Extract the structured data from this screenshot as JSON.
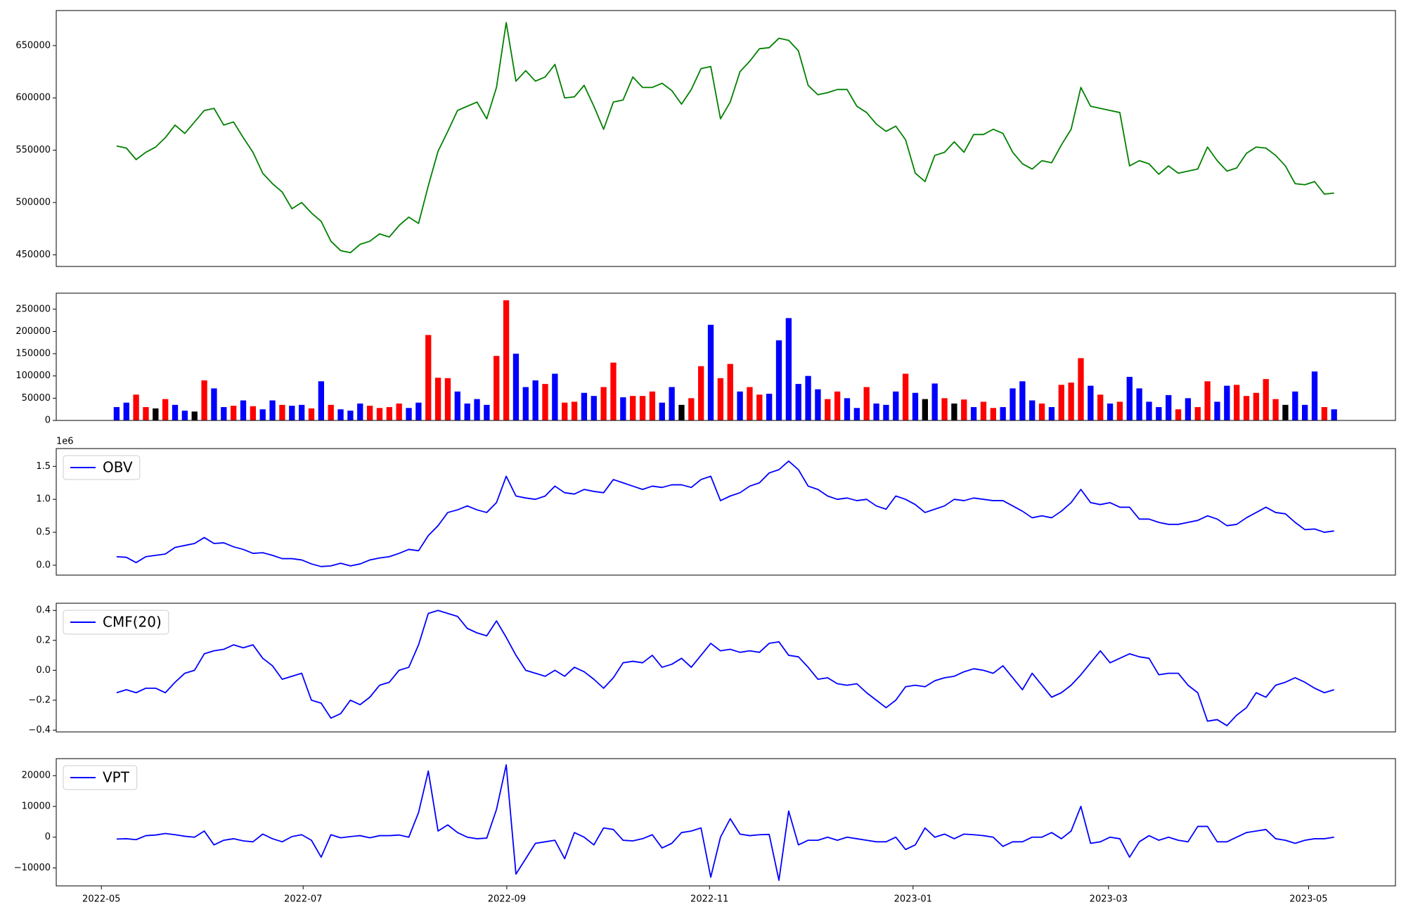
{
  "chart_data": [
    {
      "type": "line",
      "color": "green",
      "xlim": [
        -6.2,
        131.3
      ],
      "ylim": [
        438840,
        683500
      ],
      "yticks": [
        450000,
        500000,
        550000,
        600000,
        650000
      ],
      "values": [
        554000,
        552000,
        541000,
        548000,
        553000,
        562000,
        574000,
        566000,
        577000,
        588000,
        590000,
        574000,
        577000,
        562000,
        548000,
        528000,
        518000,
        510000,
        494000,
        500000,
        490000,
        482000,
        463000,
        454000,
        452000,
        460000,
        463000,
        470000,
        467000,
        478000,
        486000,
        480000,
        516000,
        549000,
        568000,
        588000,
        592000,
        596000,
        580000,
        610000,
        672000,
        616000,
        626000,
        616000,
        620000,
        632000,
        600000,
        601000,
        612000,
        592000,
        570000,
        596000,
        598000,
        620000,
        610000,
        610000,
        614000,
        607000,
        594000,
        608000,
        628000,
        630000,
        580000,
        596000,
        625000,
        635000,
        647000,
        648000,
        657000,
        655000,
        645000,
        612000,
        603000,
        605000,
        608000,
        608000,
        592000,
        586000,
        575000,
        568000,
        573000,
        560000,
        528000,
        520000,
        545000,
        548000,
        558000,
        548000,
        565000,
        565000,
        570000,
        566000,
        548000,
        537000,
        532000,
        540000,
        538000,
        555000,
        570000,
        610000,
        592000,
        590000,
        588000,
        586000,
        535000,
        540000,
        537000,
        527000,
        535000,
        528000,
        530000,
        532000,
        553000,
        540000,
        530000,
        533000,
        547000,
        553000,
        552000,
        545000,
        535000,
        518000,
        517000,
        520000,
        508000,
        509000
      ]
    },
    {
      "type": "bar",
      "xlim": [
        -6.2,
        131.3
      ],
      "ylim": [
        0,
        286000
      ],
      "yticks": [
        0,
        50000,
        100000,
        150000,
        200000,
        250000
      ],
      "values": [
        30000,
        40000,
        58000,
        30000,
        27000,
        48000,
        35000,
        22000,
        20000,
        90000,
        72000,
        30000,
        33000,
        45000,
        32000,
        25000,
        45000,
        35000,
        33000,
        35000,
        27000,
        88000,
        35000,
        25000,
        22000,
        38000,
        33000,
        28000,
        30000,
        38000,
        28000,
        40000,
        192000,
        96000,
        95000,
        65000,
        38000,
        48000,
        35000,
        145000,
        270000,
        150000,
        75000,
        90000,
        82000,
        105000,
        40000,
        42000,
        62000,
        55000,
        75000,
        130000,
        52000,
        55000,
        55000,
        65000,
        40000,
        75000,
        35000,
        50000,
        122000,
        215000,
        95000,
        127000,
        65000,
        75000,
        58000,
        60000,
        180000,
        230000,
        82000,
        100000,
        70000,
        48000,
        65000,
        50000,
        28000,
        75000,
        38000,
        35000,
        65000,
        105000,
        62000,
        48000,
        83000,
        50000,
        38000,
        47000,
        30000,
        42000,
        28000,
        30000,
        72000,
        88000,
        45000,
        38000,
        30000,
        80000,
        85000,
        140000,
        78000,
        58000,
        38000,
        42000,
        98000,
        72000,
        42000,
        30000,
        57000,
        25000,
        50000,
        30000,
        88000,
        42000,
        78000,
        80000,
        55000,
        62000,
        93000,
        48000,
        35000,
        65000,
        35000,
        110000,
        30000,
        25000
      ],
      "colors": [
        "blue",
        "blue",
        "red",
        "red",
        "black",
        "red",
        "blue",
        "blue",
        "black",
        "red",
        "blue",
        "blue",
        "red",
        "blue",
        "red",
        "blue",
        "blue",
        "red",
        "blue",
        "blue",
        "red",
        "blue",
        "red",
        "blue",
        "blue",
        "blue",
        "red",
        "red",
        "red",
        "red",
        "blue",
        "blue",
        "red",
        "red",
        "red",
        "blue",
        "blue",
        "blue",
        "blue",
        "red",
        "red",
        "blue",
        "blue",
        "blue",
        "red",
        "blue",
        "red",
        "red",
        "blue",
        "blue",
        "red",
        "red",
        "blue",
        "red",
        "red",
        "red",
        "blue",
        "blue",
        "black",
        "red",
        "red",
        "blue",
        "red",
        "red",
        "blue",
        "red",
        "red",
        "blue",
        "blue",
        "blue",
        "blue",
        "blue",
        "blue",
        "red",
        "red",
        "blue",
        "blue",
        "red",
        "blue",
        "blue",
        "blue",
        "red",
        "blue",
        "black",
        "blue",
        "red",
        "black",
        "red",
        "blue",
        "red",
        "red",
        "blue",
        "blue",
        "blue",
        "blue",
        "red",
        "blue",
        "red",
        "red",
        "red",
        "blue",
        "red",
        "blue",
        "red",
        "blue",
        "blue",
        "blue",
        "blue",
        "blue",
        "red",
        "blue",
        "red",
        "red",
        "blue",
        "blue",
        "red",
        "red",
        "red",
        "red",
        "red",
        "black",
        "blue",
        "blue",
        "blue",
        "red",
        "blue"
      ]
    },
    {
      "type": "line",
      "xlim": [
        -6.2,
        131.3
      ],
      "ylim": [
        -0.15,
        1.77
      ],
      "offset_text": "1e6",
      "legend": "upper left",
      "yticks": [
        {
          "value": 0,
          "label": "0.0"
        },
        {
          "value": 0.5,
          "label": "0.5"
        },
        {
          "value": 1,
          "label": "1.0"
        },
        {
          "value": 1.5,
          "label": "1.5"
        }
      ],
      "series": [
        {
          "name": "OBV",
          "color": "blue",
          "values": [
            0.13,
            0.12,
            0.04,
            0.13,
            0.15,
            0.17,
            0.27,
            0.3,
            0.33,
            0.42,
            0.33,
            0.34,
            0.28,
            0.24,
            0.18,
            0.19,
            0.15,
            0.1,
            0.1,
            0.08,
            0.02,
            -0.02,
            -0.01,
            0.03,
            -0.01,
            0.02,
            0.08,
            0.11,
            0.13,
            0.18,
            0.24,
            0.22,
            0.45,
            0.6,
            0.8,
            0.84,
            0.9,
            0.84,
            0.8,
            0.95,
            1.35,
            1.05,
            1.02,
            1.0,
            1.05,
            1.2,
            1.1,
            1.08,
            1.15,
            1.12,
            1.1,
            1.3,
            1.25,
            1.2,
            1.15,
            1.2,
            1.18,
            1.22,
            1.22,
            1.18,
            1.3,
            1.35,
            0.98,
            1.05,
            1.1,
            1.2,
            1.25,
            1.4,
            1.45,
            1.58,
            1.45,
            1.2,
            1.15,
            1.05,
            1.0,
            1.02,
            0.98,
            1.0,
            0.9,
            0.85,
            1.05,
            1.0,
            0.92,
            0.8,
            0.85,
            0.9,
            1.0,
            0.98,
            1.02,
            1.0,
            0.98,
            0.98,
            0.9,
            0.82,
            0.72,
            0.75,
            0.72,
            0.82,
            0.95,
            1.15,
            0.95,
            0.92,
            0.95,
            0.88,
            0.88,
            0.7,
            0.7,
            0.65,
            0.62,
            0.62,
            0.65,
            0.68,
            0.75,
            0.7,
            0.6,
            0.62,
            0.72,
            0.8,
            0.88,
            0.8,
            0.78,
            0.65,
            0.54,
            0.55,
            0.5,
            0.52
          ]
        }
      ]
    },
    {
      "type": "line",
      "xlim": [
        -6.2,
        131.3
      ],
      "ylim": [
        -0.412,
        0.448
      ],
      "legend": "upper left",
      "yticks": [
        {
          "value": -0.4,
          "label": "−0.4"
        },
        {
          "value": -0.2,
          "label": "−0.2"
        },
        {
          "value": 0,
          "label": "0.0"
        },
        {
          "value": 0.2,
          "label": "0.2"
        },
        {
          "value": 0.4,
          "label": "0.4"
        }
      ],
      "series": [
        {
          "name": "CMF(20)",
          "color": "blue",
          "values": [
            -0.15,
            -0.13,
            -0.15,
            -0.12,
            -0.12,
            -0.15,
            -0.08,
            -0.02,
            0,
            0.11,
            0.13,
            0.14,
            0.17,
            0.15,
            0.17,
            0.08,
            0.03,
            -0.06,
            -0.04,
            -0.02,
            -0.2,
            -0.22,
            -0.32,
            -0.29,
            -0.2,
            -0.23,
            -0.18,
            -0.1,
            -0.08,
            0,
            0.02,
            0.17,
            0.38,
            0.4,
            0.38,
            0.36,
            0.28,
            0.25,
            0.23,
            0.33,
            0.22,
            0.1,
            0,
            -0.02,
            -0.04,
            0,
            -0.04,
            0.02,
            -0.01,
            -0.06,
            -0.12,
            -0.05,
            0.05,
            0.06,
            0.05,
            0.1,
            0.02,
            0.04,
            0.08,
            0.02,
            0.1,
            0.18,
            0.13,
            0.14,
            0.12,
            0.13,
            0.12,
            0.18,
            0.19,
            0.1,
            0.09,
            0.02,
            -0.06,
            -0.05,
            -0.09,
            -0.1,
            -0.09,
            -0.15,
            -0.2,
            -0.25,
            -0.2,
            -0.11,
            -0.1,
            -0.11,
            -0.07,
            -0.05,
            -0.04,
            -0.01,
            0.01,
            0,
            -0.02,
            0.03,
            -0.05,
            -0.13,
            -0.02,
            -0.1,
            -0.18,
            -0.15,
            -0.1,
            -0.03,
            0.05,
            0.13,
            0.05,
            0.08,
            0.11,
            0.09,
            0.08,
            -0.03,
            -0.02,
            -0.02,
            -0.1,
            -0.15,
            -0.34,
            -0.33,
            -0.37,
            -0.3,
            -0.25,
            -0.15,
            -0.18,
            -0.1,
            -0.08,
            -0.05,
            -0.08,
            -0.12,
            -0.15,
            -0.13
          ]
        }
      ]
    },
    {
      "type": "line",
      "xlim": [
        -6.2,
        131.3
      ],
      "ylim": [
        -15825,
        25534
      ],
      "legend": "upper left",
      "yticks": [
        {
          "value": -10000,
          "label": "−10000"
        },
        0,
        10000,
        20000
      ],
      "xticks": [
        {
          "value": -1.565,
          "label": "2022-05"
        },
        {
          "value": 19.15,
          "label": "2022-07"
        },
        {
          "value": 40.06,
          "label": "2022-09"
        },
        {
          "value": 60.87,
          "label": "2022-11"
        },
        {
          "value": 81.77,
          "label": "2023-01"
        },
        {
          "value": 101.84,
          "label": "2023-03"
        },
        {
          "value": 122.38,
          "label": "2023-05"
        }
      ],
      "series": [
        {
          "name": "VPT",
          "color": "blue",
          "values": [
            -600,
            -500,
            -800,
            500,
            700,
            1200,
            800,
            300,
            0,
            2000,
            -2500,
            -1000,
            -500,
            -1200,
            -1500,
            1000,
            -500,
            -1500,
            200,
            800,
            -1000,
            -6500,
            800,
            -200,
            200,
            500,
            -200,
            500,
            500,
            700,
            0,
            8000,
            21500,
            2000,
            4000,
            1500,
            0,
            -500,
            -300,
            9000,
            23500,
            -12000,
            -7000,
            -2000,
            -1500,
            -1000,
            -7000,
            1500,
            0,
            -2500,
            3000,
            2500,
            -1000,
            -1200,
            -500,
            800,
            -3500,
            -2000,
            1500,
            2000,
            3000,
            -13000,
            0,
            6000,
            1000,
            500,
            800,
            900,
            -14000,
            8500,
            -2500,
            -1000,
            -1000,
            0,
            -1000,
            0,
            -500,
            -1000,
            -1500,
            -1500,
            0,
            -4000,
            -2500,
            3000,
            0,
            1000,
            -500,
            1000,
            800,
            500,
            0,
            -3000,
            -1500,
            -1500,
            0,
            0,
            1500,
            -500,
            2000,
            10000,
            -2000,
            -1500,
            0,
            -500,
            -6500,
            -1500,
            500,
            -1000,
            0,
            -1000,
            -1500,
            3500,
            3500,
            -1500,
            -1500,
            0,
            1500,
            2000,
            2500,
            -500,
            -1000,
            -2000,
            -1000,
            -500,
            -500,
            0
          ]
        }
      ]
    }
  ]
}
